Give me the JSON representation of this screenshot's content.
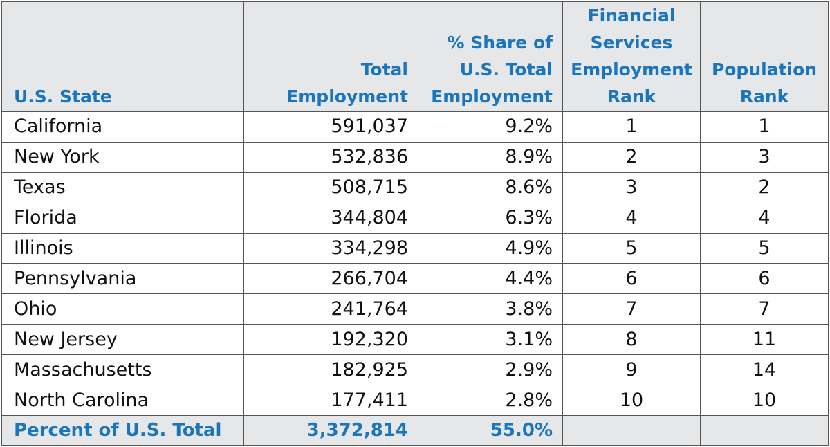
{
  "table": {
    "headers": {
      "state": "U.S. State",
      "total_line1": "Total",
      "total_line2": "Employment",
      "share_line1": "% Share of",
      "share_line2": "U.S. Total",
      "share_line3": "Employment",
      "fin_line1": "Financial",
      "fin_line2": "Services",
      "fin_line3": "Employment",
      "fin_line4": "Rank",
      "pop_line1": "Population",
      "pop_line2": "Rank"
    },
    "rows": [
      {
        "state": "California",
        "total": "591,037",
        "share": "9.2%",
        "fin_rank": "1",
        "pop_rank": "1"
      },
      {
        "state": "New York",
        "total": "532,836",
        "share": "8.9%",
        "fin_rank": "2",
        "pop_rank": "3"
      },
      {
        "state": "Texas",
        "total": "508,715",
        "share": "8.6%",
        "fin_rank": "3",
        "pop_rank": "2"
      },
      {
        "state": "Florida",
        "total": "344,804",
        "share": "6.3%",
        "fin_rank": "4",
        "pop_rank": "4"
      },
      {
        "state": "Illinois",
        "total": "334,298",
        "share": "4.9%",
        "fin_rank": "5",
        "pop_rank": "5"
      },
      {
        "state": "Pennsylvania",
        "total": "266,704",
        "share": "4.4%",
        "fin_rank": "6",
        "pop_rank": "6"
      },
      {
        "state": "Ohio",
        "total": "241,764",
        "share": "3.8%",
        "fin_rank": "7",
        "pop_rank": "7"
      },
      {
        "state": "New Jersey",
        "total": "192,320",
        "share": "3.1%",
        "fin_rank": "8",
        "pop_rank": "11"
      },
      {
        "state": "Massachusetts",
        "total": "182,925",
        "share": "2.9%",
        "fin_rank": "9",
        "pop_rank": "14"
      },
      {
        "state": "North Carolina",
        "total": "177,411",
        "share": "2.8%",
        "fin_rank": "10",
        "pop_rank": "10"
      }
    ],
    "footer": {
      "label": "Percent of U.S. Total",
      "total": "3,372,814",
      "share": "55.0%",
      "fin_rank": "",
      "pop_rank": ""
    }
  },
  "colors": {
    "header_text": "#1b75bc",
    "header_background": "#e6e7e8",
    "border": "#555555"
  }
}
